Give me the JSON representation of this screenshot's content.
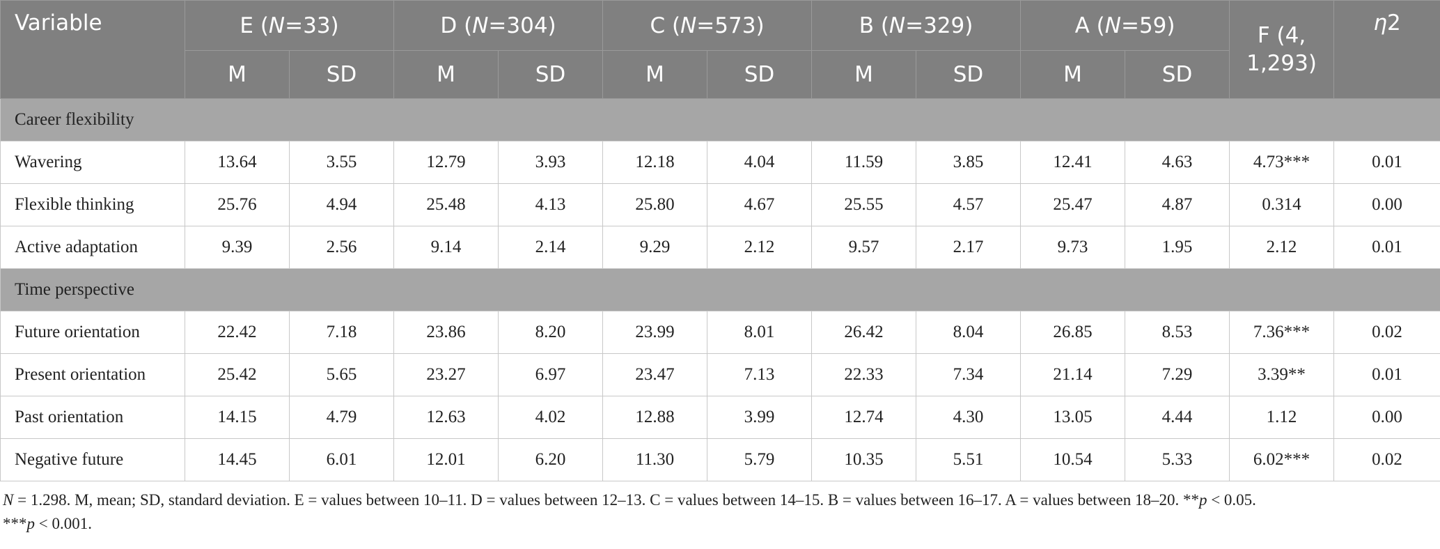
{
  "table": {
    "header": {
      "variable": "Variable",
      "groups": [
        [
          "E (",
          "N",
          "=33)"
        ],
        [
          "D (",
          "N",
          "=304)"
        ],
        [
          "C (",
          "N",
          "=573)"
        ],
        [
          "B (",
          "N",
          "=329)"
        ],
        [
          "A (",
          "N",
          "=59)"
        ]
      ],
      "sub": [
        "M",
        "SD"
      ],
      "f": "F (4, 1,293)",
      "eta": [
        "η",
        "2"
      ]
    },
    "sections": [
      {
        "title": "Career flexibility",
        "rows": [
          {
            "label": "Wavering",
            "values": [
              "13.64",
              "3.55",
              "12.79",
              "3.93",
              "12.18",
              "4.04",
              "11.59",
              "3.85",
              "12.41",
              "4.63",
              "4.73***",
              "0.01"
            ]
          },
          {
            "label": "Flexible thinking",
            "values": [
              "25.76",
              "4.94",
              "25.48",
              "4.13",
              "25.80",
              "4.67",
              "25.55",
              "4.57",
              "25.47",
              "4.87",
              "0.314",
              "0.00"
            ]
          },
          {
            "label": "Active adaptation",
            "values": [
              "9.39",
              "2.56",
              "9.14",
              "2.14",
              "9.29",
              "2.12",
              "9.57",
              "2.17",
              "9.73",
              "1.95",
              "2.12",
              "0.01"
            ]
          }
        ]
      },
      {
        "title": "Time perspective",
        "rows": [
          {
            "label": "Future orientation",
            "values": [
              "22.42",
              "7.18",
              "23.86",
              "8.20",
              "23.99",
              "8.01",
              "26.42",
              "8.04",
              "26.85",
              "8.53",
              "7.36***",
              "0.02"
            ]
          },
          {
            "label": "Present orientation",
            "values": [
              "25.42",
              "5.65",
              "23.27",
              "6.97",
              "23.47",
              "7.13",
              "22.33",
              "7.34",
              "21.14",
              "7.29",
              "3.39**",
              "0.01"
            ]
          },
          {
            "label": "Past orientation",
            "values": [
              "14.15",
              "4.79",
              "12.63",
              "4.02",
              "12.88",
              "3.99",
              "12.74",
              "4.30",
              "13.05",
              "4.44",
              "1.12",
              "0.00"
            ]
          },
          {
            "label": "Negative future",
            "values": [
              "14.45",
              "6.01",
              "12.01",
              "6.20",
              "11.30",
              "5.79",
              "10.35",
              "5.51",
              "10.54",
              "5.33",
              "6.02***",
              "0.02"
            ]
          }
        ]
      }
    ]
  },
  "note": {
    "lines": [
      [
        {
          "text": "N",
          "italic": true
        },
        {
          "text": " = 1.298. M, mean; SD, standard deviation. E = values between 10–11. D = values between 12–13. C = values between 14–15. B = values between 16–17. A = values between 18–20. **",
          "italic": false
        },
        {
          "text": "p",
          "italic": true
        },
        {
          "text": " < 0.05.",
          "italic": false
        }
      ],
      [
        {
          "text": "***",
          "italic": false
        },
        {
          "text": "p",
          "italic": true
        },
        {
          "text": " < 0.001.",
          "italic": false
        }
      ]
    ]
  }
}
